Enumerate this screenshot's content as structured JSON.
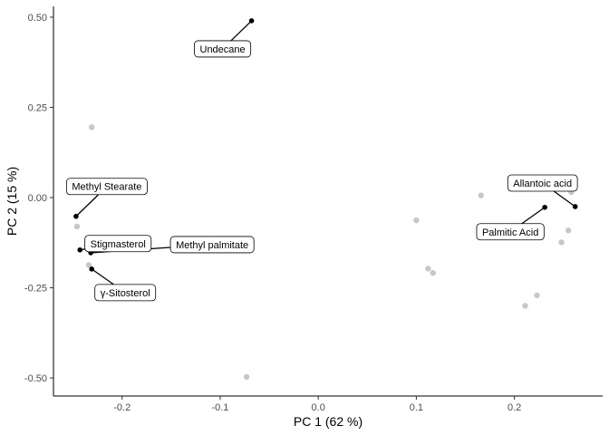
{
  "chart_data": {
    "type": "scatter",
    "xlabel": "PC 1 (62 %)",
    "ylabel": "PC 2 (15 %)",
    "xlim": [
      -0.27,
      0.29
    ],
    "ylim": [
      -0.55,
      0.53
    ],
    "xticks": [
      -0.2,
      -0.1,
      0.0,
      0.1,
      0.2
    ],
    "xtick_labels": [
      "-0.2",
      "-0.1",
      "0.0",
      "0.1",
      "0.2"
    ],
    "yticks": [
      -0.5,
      -0.25,
      0.0,
      0.25,
      0.5
    ],
    "ytick_labels": [
      "-0.50",
      "-0.25",
      "0.00",
      "0.25",
      "0.50"
    ],
    "grid": false,
    "point_colors": {
      "highlight": "#000000",
      "other": "#bdbdbd"
    },
    "highlighted_points": [
      {
        "label": "Undecane",
        "x": -0.068,
        "y": 0.49
      },
      {
        "label": "Methyl Stearate",
        "x": -0.247,
        "y": -0.052
      },
      {
        "label": "Stigmasterol",
        "x": -0.243,
        "y": -0.145
      },
      {
        "label": "Methyl palmitate",
        "x": -0.232,
        "y": -0.153
      },
      {
        "label": "γ-Sitosterol",
        "x": -0.231,
        "y": -0.198
      },
      {
        "label": "Allantoic acid",
        "x": 0.262,
        "y": -0.025
      },
      {
        "label": "Palmitic Acid",
        "x": 0.231,
        "y": -0.027
      }
    ],
    "other_points": [
      {
        "x": -0.231,
        "y": 0.195
      },
      {
        "x": -0.246,
        "y": -0.08
      },
      {
        "x": -0.228,
        "y": -0.123
      },
      {
        "x": -0.234,
        "y": -0.187
      },
      {
        "x": 0.166,
        "y": 0.006
      },
      {
        "x": 0.258,
        "y": 0.015
      },
      {
        "x": 0.255,
        "y": -0.091
      },
      {
        "x": 0.248,
        "y": -0.124
      },
      {
        "x": 0.1,
        "y": -0.063
      },
      {
        "x": 0.112,
        "y": -0.197
      },
      {
        "x": 0.117,
        "y": -0.209
      },
      {
        "x": 0.223,
        "y": -0.271
      },
      {
        "x": 0.211,
        "y": -0.3
      },
      {
        "x": -0.073,
        "y": -0.497
      }
    ]
  }
}
